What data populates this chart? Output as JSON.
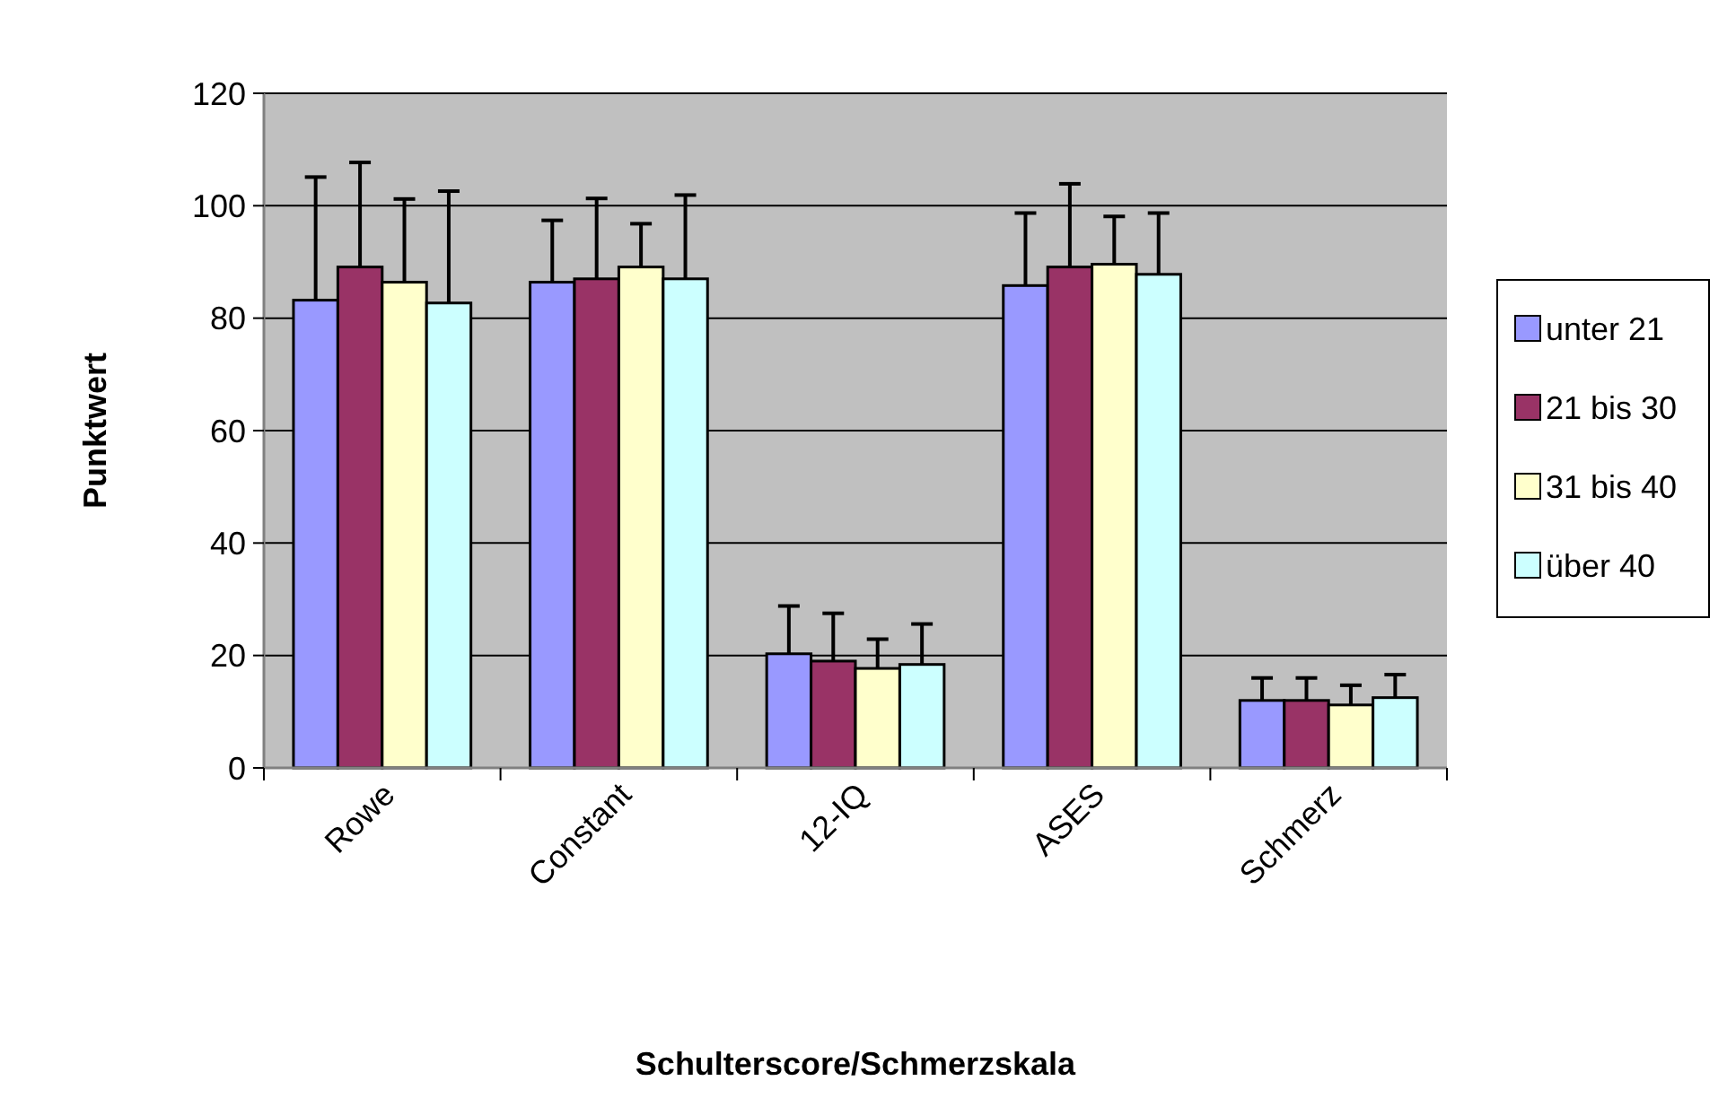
{
  "chart_data": {
    "type": "bar",
    "xlabel": "Schulterscore/Schmerzskala",
    "ylabel": "Punktwert",
    "categories": [
      "Rowe",
      "Constant",
      "12-IQ",
      "ASES",
      "Schmerz"
    ],
    "series": [
      {
        "name": "unter 21",
        "color": "#9999ff",
        "values": [
          83.2,
          86.4,
          20.3,
          85.8,
          12.0
        ],
        "errors": [
          21.9,
          11.0,
          8.5,
          12.9,
          4.0
        ]
      },
      {
        "name": "21 bis 30",
        "color": "#993366",
        "values": [
          89.1,
          87.0,
          19.0,
          89.1,
          12.0
        ],
        "errors": [
          18.6,
          14.3,
          8.5,
          14.8,
          4.0
        ]
      },
      {
        "name": "31 bis 40",
        "color": "#ffffcc",
        "values": [
          86.4,
          89.1,
          17.7,
          89.6,
          11.2
        ],
        "errors": [
          14.8,
          7.7,
          5.2,
          8.5,
          3.5
        ]
      },
      {
        "name": "über 40",
        "color": "#ccffff",
        "values": [
          82.7,
          87.0,
          18.4,
          87.8,
          12.5
        ],
        "errors": [
          19.9,
          14.9,
          7.2,
          10.9,
          4.1
        ]
      }
    ],
    "ylim": [
      0,
      120
    ],
    "yticks": [
      0,
      20,
      40,
      60,
      80,
      100,
      120
    ],
    "grid": "y",
    "legend": "right"
  }
}
